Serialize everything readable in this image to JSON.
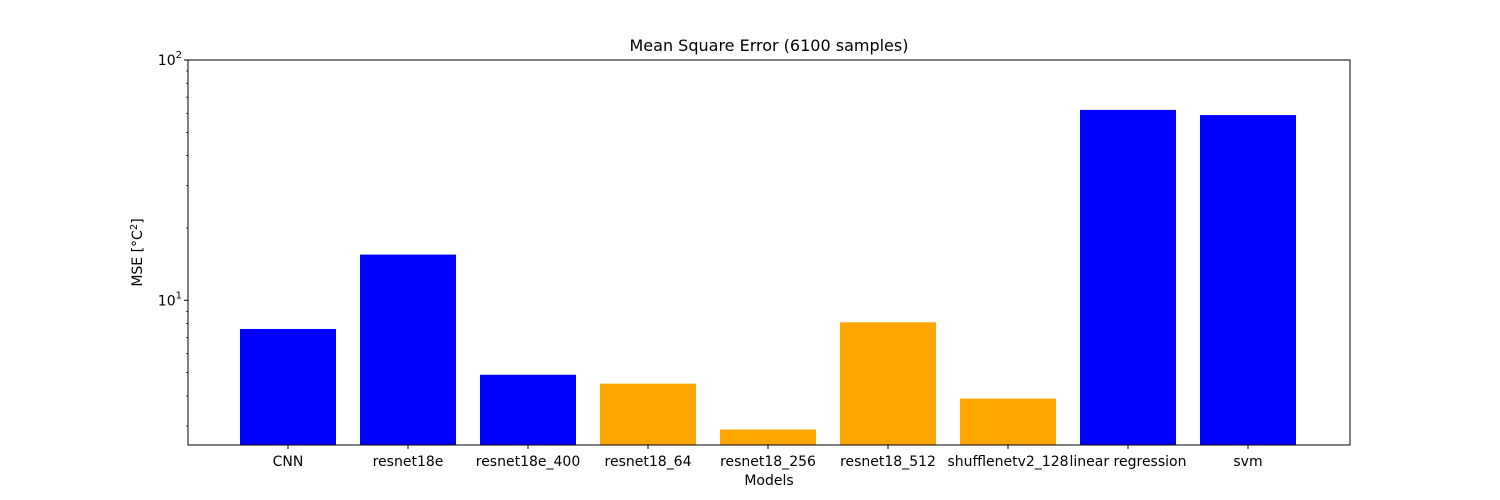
{
  "chart_data": {
    "type": "bar",
    "title": "Mean Square Error (6100 samples)",
    "xlabel": "Models",
    "ylabel": "MSE [°C²]",
    "yscale": "log",
    "ylim": [
      2.5,
      100
    ],
    "grid": false,
    "categories": [
      "CNN",
      "resnet18e",
      "resnet18e_400",
      "resnet18_64",
      "resnet18_256",
      "resnet18_512",
      "shufflenetv2_128",
      "linear regression",
      "svm"
    ],
    "values": [
      7.6,
      15.5,
      4.9,
      4.5,
      2.9,
      8.1,
      3.9,
      62,
      59
    ],
    "bar_colors": [
      "#0000ff",
      "#0000ff",
      "#0000ff",
      "#ffa500",
      "#ffa500",
      "#ffa500",
      "#ffa500",
      "#0000ff",
      "#0000ff"
    ],
    "yticks": [
      {
        "value": 10,
        "base": "10",
        "exp": "1"
      },
      {
        "value": 100,
        "base": "10",
        "exp": "2"
      }
    ]
  }
}
